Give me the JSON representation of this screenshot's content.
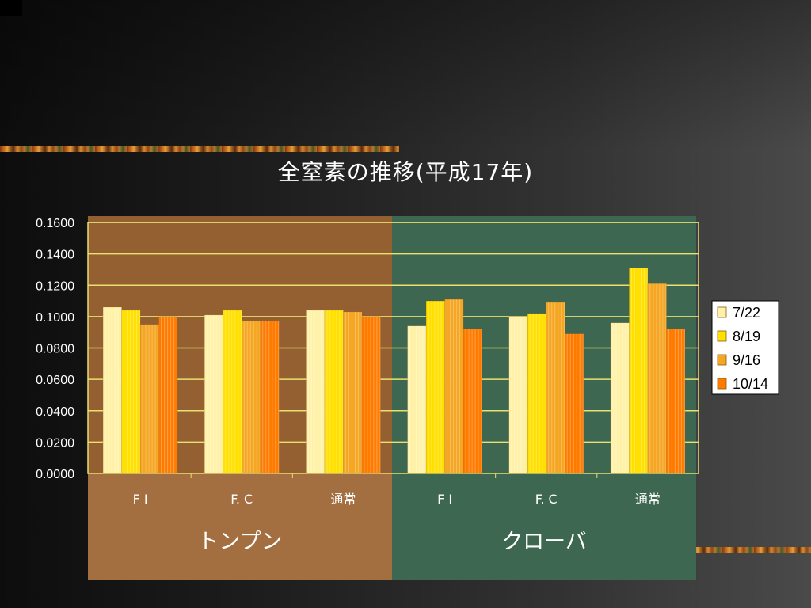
{
  "chart_data": {
    "type": "bar",
    "title": "全窒素の推移(平成17年)",
    "categories": [
      "F I",
      "F. C",
      "通常",
      "F I",
      "F. C",
      "通常"
    ],
    "groups": [
      {
        "name": "トンプン",
        "categories": [
          "F I",
          "F. C",
          "通常"
        ]
      },
      {
        "name": "クローバ",
        "categories": [
          "F I",
          "F. C",
          "通常"
        ]
      }
    ],
    "series": [
      {
        "name": "7/22",
        "color": "#fff2a8",
        "values": [
          0.106,
          0.101,
          0.104,
          0.094,
          0.1,
          0.096
        ]
      },
      {
        "name": "8/19",
        "color": "#ffe000",
        "values": [
          0.104,
          0.104,
          0.104,
          0.11,
          0.102,
          0.131
        ]
      },
      {
        "name": "9/16",
        "color": "#f5a623",
        "values": [
          0.095,
          0.097,
          0.103,
          0.111,
          0.109,
          0.121
        ]
      },
      {
        "name": "10/14",
        "color": "#ff7b00",
        "values": [
          0.1,
          0.097,
          0.1,
          0.092,
          0.089,
          0.092
        ]
      }
    ],
    "y_ticks": [
      "0.0000",
      "0.0200",
      "0.0400",
      "0.0600",
      "0.0800",
      "0.1000",
      "0.1200",
      "0.1400",
      "0.1600"
    ],
    "ylim": [
      0,
      0.16
    ],
    "grid": true,
    "legend_position": "right",
    "xlabel": "",
    "ylabel": ""
  }
}
